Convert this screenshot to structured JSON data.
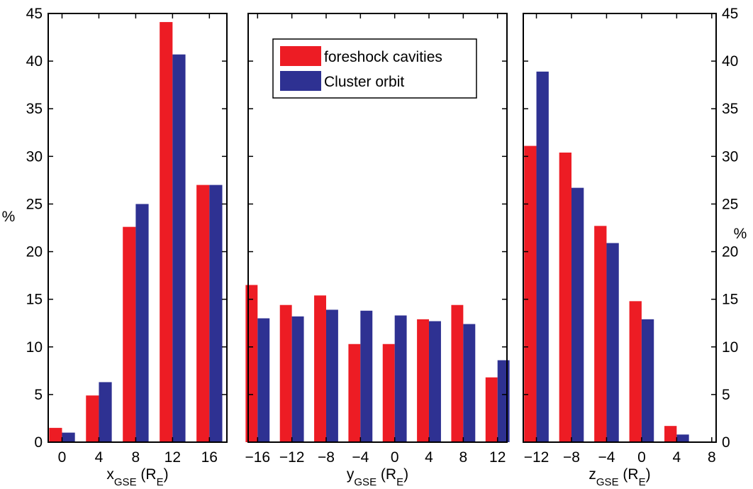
{
  "chart_data": [
    {
      "type": "bar",
      "ylabel": "%",
      "yaxis_side": "left",
      "show_ytick_labels": true,
      "xlabel": [
        "x",
        "GSE",
        " (R",
        "E",
        ")"
      ],
      "x": [
        0,
        4,
        8,
        12,
        16
      ],
      "xlim": [
        -1.5,
        17.9
      ],
      "xticks": [
        0,
        4,
        8,
        12,
        16
      ],
      "ylim": [
        0,
        45
      ],
      "yticks": [
        0,
        5,
        10,
        15,
        20,
        25,
        30,
        35,
        40,
        45
      ],
      "series": [
        {
          "name": "foreshock cavities",
          "color": "#ed1c24",
          "values": [
            1.5,
            4.9,
            22.6,
            44.1,
            27.0
          ]
        },
        {
          "name": "Cluster orbit",
          "color": "#2e3192",
          "values": [
            1.0,
            6.3,
            25.0,
            40.7,
            27.0
          ]
        }
      ]
    },
    {
      "type": "bar",
      "yaxis_side": "left",
      "show_ytick_labels": false,
      "legend": true,
      "legend_position": "upper center",
      "xlabel": [
        "y",
        "GSE",
        " (R",
        "E",
        ")"
      ],
      "x": [
        -16,
        -12,
        -8,
        -4,
        0,
        4,
        8,
        12
      ],
      "xlim": [
        -17.1,
        13.1
      ],
      "xticks": [
        {
          "value": -16,
          "label": "−16"
        },
        {
          "value": -12,
          "label": "−12"
        },
        {
          "value": -8,
          "label": "−8"
        },
        {
          "value": -4,
          "label": "−4"
        },
        0,
        4,
        8,
        12
      ],
      "ylim": [
        0,
        45
      ],
      "yticks": [
        0,
        5,
        10,
        15,
        20,
        25,
        30,
        35,
        40,
        45
      ],
      "series": [
        {
          "name": "foreshock cavities",
          "color": "#ed1c24",
          "values": [
            16.5,
            14.4,
            15.4,
            10.3,
            10.3,
            12.9,
            14.4,
            6.8
          ]
        },
        {
          "name": "Cluster orbit",
          "color": "#2e3192",
          "values": [
            13.0,
            13.2,
            13.9,
            13.8,
            13.3,
            12.7,
            12.4,
            8.6
          ]
        }
      ]
    },
    {
      "type": "bar",
      "ylabel": "%",
      "yaxis_side": "right",
      "show_ytick_labels": true,
      "xlabel": [
        "z",
        "GSE",
        " (R",
        "E",
        ")"
      ],
      "x": [
        -12,
        -8,
        -4,
        0,
        4
      ],
      "xlim": [
        -13.5,
        8.5
      ],
      "xticks": [
        {
          "value": -12,
          "label": "−12"
        },
        {
          "value": -8,
          "label": "−8"
        },
        {
          "value": -4,
          "label": "−4"
        },
        0,
        4,
        8
      ],
      "ylim": [
        0,
        45
      ],
      "yticks": [
        0,
        5,
        10,
        15,
        20,
        25,
        30,
        35,
        40,
        45
      ],
      "series": [
        {
          "name": "foreshock cavities",
          "color": "#ed1c24",
          "values": [
            31.1,
            30.4,
            22.7,
            14.8,
            1.7
          ]
        },
        {
          "name": "Cluster orbit",
          "color": "#2e3192",
          "values": [
            38.9,
            26.7,
            20.9,
            12.9,
            0.8
          ]
        }
      ]
    }
  ]
}
